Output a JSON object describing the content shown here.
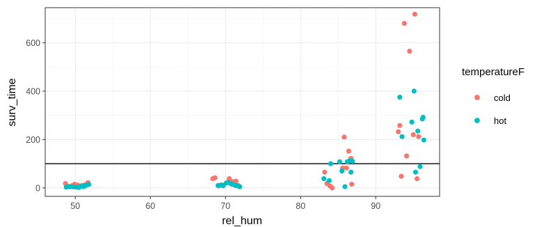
{
  "chart_data": {
    "type": "scatter",
    "xlabel": "rel_hum",
    "ylabel": "surv_time",
    "xlim": [
      46,
      98.5
    ],
    "ylim": [
      -35,
      745
    ],
    "x_ticks": [
      50,
      60,
      70,
      80,
      90
    ],
    "y_ticks": [
      0,
      200,
      400,
      600
    ],
    "x_tick_labels": [
      "50",
      "60",
      "70",
      "80",
      "90"
    ],
    "y_tick_labels": [
      "0",
      "200",
      "400",
      "600"
    ],
    "hline": 100,
    "grid": true,
    "legend_position": "right",
    "legend_title": "temperatureF",
    "colors": {
      "cold": "#f8766d",
      "hot": "#00bfc4",
      "hline": "#000000"
    },
    "series": [
      {
        "name": "cold",
        "points": [
          [
            48.7,
            18
          ],
          [
            49.2,
            5
          ],
          [
            49.6,
            10
          ],
          [
            49.9,
            15
          ],
          [
            50.3,
            12
          ],
          [
            50.6,
            6
          ],
          [
            50.9,
            10
          ],
          [
            51.3,
            13
          ],
          [
            51.7,
            22
          ],
          [
            68.3,
            38
          ],
          [
            68.6,
            42
          ],
          [
            69.1,
            8
          ],
          [
            69.6,
            12
          ],
          [
            70.2,
            22
          ],
          [
            70.5,
            38
          ],
          [
            70.8,
            15
          ],
          [
            71.0,
            26
          ],
          [
            71.4,
            28
          ],
          [
            71.7,
            10
          ],
          [
            83.2,
            65
          ],
          [
            83.5,
            18
          ],
          [
            83.9,
            8
          ],
          [
            84.2,
            0
          ],
          [
            85.6,
            82
          ],
          [
            85.8,
            210
          ],
          [
            86.1,
            82
          ],
          [
            86.4,
            152
          ],
          [
            86.7,
            122
          ],
          [
            86.8,
            15
          ],
          [
            93.0,
            232
          ],
          [
            93.2,
            258
          ],
          [
            93.4,
            48
          ],
          [
            93.8,
            680
          ],
          [
            94.1,
            132
          ],
          [
            94.5,
            565
          ],
          [
            95.0,
            220
          ],
          [
            95.2,
            718
          ],
          [
            95.5,
            38
          ],
          [
            95.7,
            212
          ]
        ]
      },
      {
        "name": "hot",
        "points": [
          [
            48.8,
            3
          ],
          [
            49.1,
            6
          ],
          [
            49.4,
            5
          ],
          [
            49.8,
            4
          ],
          [
            50.2,
            3
          ],
          [
            50.5,
            2
          ],
          [
            50.8,
            8
          ],
          [
            51.1,
            5
          ],
          [
            51.4,
            10
          ],
          [
            51.8,
            14
          ],
          [
            69.0,
            10
          ],
          [
            69.4,
            12
          ],
          [
            69.7,
            9
          ],
          [
            70.1,
            20
          ],
          [
            70.4,
            22
          ],
          [
            70.7,
            18
          ],
          [
            71.0,
            15
          ],
          [
            71.3,
            10
          ],
          [
            71.6,
            8
          ],
          [
            71.9,
            5
          ],
          [
            83.1,
            38
          ],
          [
            83.8,
            30
          ],
          [
            84.0,
            100
          ],
          [
            85.2,
            108
          ],
          [
            85.5,
            70
          ],
          [
            85.9,
            5
          ],
          [
            86.2,
            108
          ],
          [
            86.5,
            112
          ],
          [
            86.7,
            65
          ],
          [
            86.9,
            110
          ],
          [
            93.2,
            375
          ],
          [
            93.5,
            212
          ],
          [
            94.8,
            272
          ],
          [
            95.1,
            400
          ],
          [
            95.3,
            65
          ],
          [
            95.6,
            235
          ],
          [
            95.9,
            88
          ],
          [
            96.2,
            285
          ],
          [
            96.3,
            292
          ],
          [
            96.4,
            198
          ]
        ]
      }
    ]
  }
}
